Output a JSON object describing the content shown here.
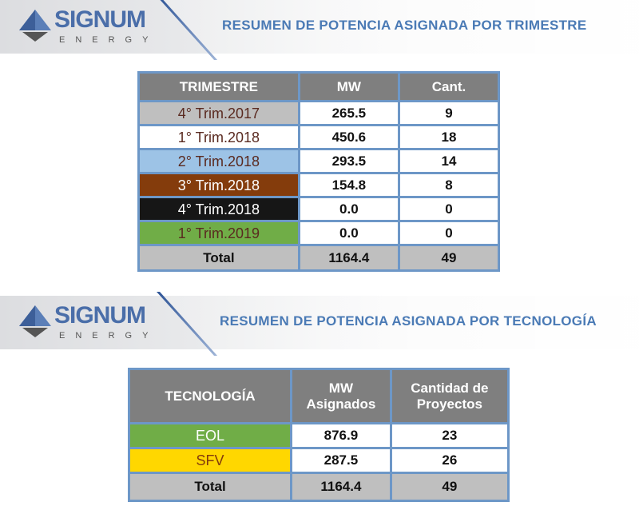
{
  "logo": {
    "word": "SIGNUM",
    "sub": "ENERGY"
  },
  "section1": {
    "title": "RESUMEN DE POTENCIA ASIGNADA POR TRIMESTRE",
    "headers": [
      "TRIMESTRE",
      "MW",
      "Cant."
    ],
    "rows": [
      {
        "label": "4° Trim.2017",
        "mw": "265.5",
        "cant": "9",
        "color": "#bfbfbf",
        "text": "#5a2a20"
      },
      {
        "label": "1° Trim.2018",
        "mw": "450.6",
        "cant": "18",
        "color": "#ffffff",
        "text": "#5a2a20"
      },
      {
        "label": "2° Trim.2018",
        "mw": "293.5",
        "cant": "14",
        "color": "#9dc3e6",
        "text": "#5a2a20"
      },
      {
        "label": "3° Trim.2018",
        "mw": "154.8",
        "cant": "8",
        "color": "#843c0c",
        "text": "#ffffff"
      },
      {
        "label": "4° Trim.2018",
        "mw": "0.0",
        "cant": "0",
        "color": "#161616",
        "text": "#ffffff"
      },
      {
        "label": "1° Trim.2019",
        "mw": "0.0",
        "cant": "0",
        "color": "#70ad47",
        "text": "#5a2a20"
      }
    ],
    "total": {
      "label": "Total",
      "mw": "1164.4",
      "cant": "49"
    }
  },
  "section2": {
    "title": "RESUMEN DE POTENCIA ASIGNADA POR TECNOLOGÍA",
    "headers": [
      "TECNOLOGÍA",
      "MW Asignados",
      "Cantidad de Proyectos"
    ],
    "rows": [
      {
        "label": "EOL",
        "mw": "876.9",
        "cant": "23",
        "color": "#70ad47",
        "text": "#ffffff"
      },
      {
        "label": "SFV",
        "mw": "287.5",
        "cant": "26",
        "color": "#ffd700",
        "text": "#843c0c"
      }
    ],
    "total": {
      "label": "Total",
      "mw": "1164.4",
      "cant": "49"
    }
  }
}
